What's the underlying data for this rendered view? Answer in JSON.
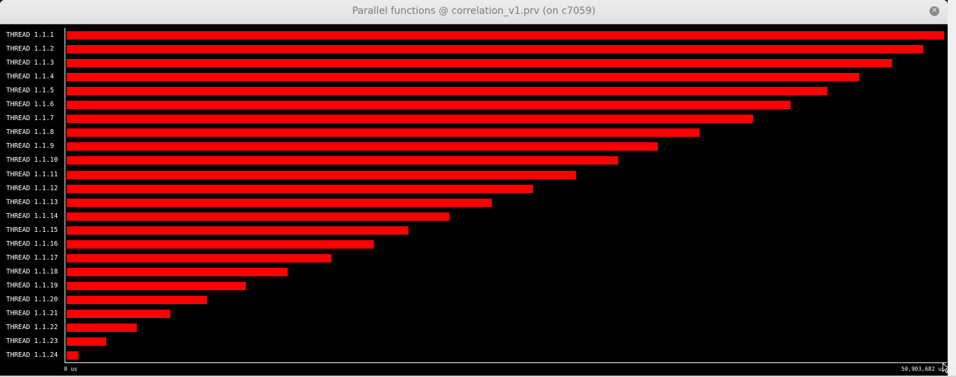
{
  "window": {
    "title": "Parallel functions @ correlation_v1.prv (on c7059)",
    "close_icon": "close-icon"
  },
  "colors": {
    "bar": "#ff0000",
    "background": "#000000",
    "axis": "#ffffff"
  },
  "chart_data": {
    "type": "bar",
    "orientation": "horizontal",
    "categories": [
      "THREAD 1.1.1",
      "THREAD 1.1.2",
      "THREAD 1.1.3",
      "THREAD 1.1.4",
      "THREAD 1.1.5",
      "THREAD 1.1.6",
      "THREAD 1.1.7",
      "THREAD 1.1.8",
      "THREAD 1.1.9",
      "THREAD 1.1.10",
      "THREAD 1.1.11",
      "THREAD 1.1.12",
      "THREAD 1.1.13",
      "THREAD 1.1.14",
      "THREAD 1.1.15",
      "THREAD 1.1.16",
      "THREAD 1.1.17",
      "THREAD 1.1.18",
      "THREAD 1.1.19",
      "THREAD 1.1.20",
      "THREAD 1.1.21",
      "THREAD 1.1.22",
      "THREAD 1.1.23",
      "THREAD 1.1.24"
    ],
    "values": [
      50903682,
      49700000,
      47900000,
      46000000,
      44150000,
      42000000,
      39800000,
      36700000,
      34300000,
      32000000,
      29550000,
      27050000,
      24650000,
      22220000,
      19830000,
      17800000,
      15350000,
      12810000,
      10400000,
      8130000,
      6010000,
      4080000,
      2300000,
      700000
    ],
    "xlim_labels": [
      "0 us",
      "50,903,682 us"
    ],
    "xlim": [
      0,
      50903682
    ]
  }
}
